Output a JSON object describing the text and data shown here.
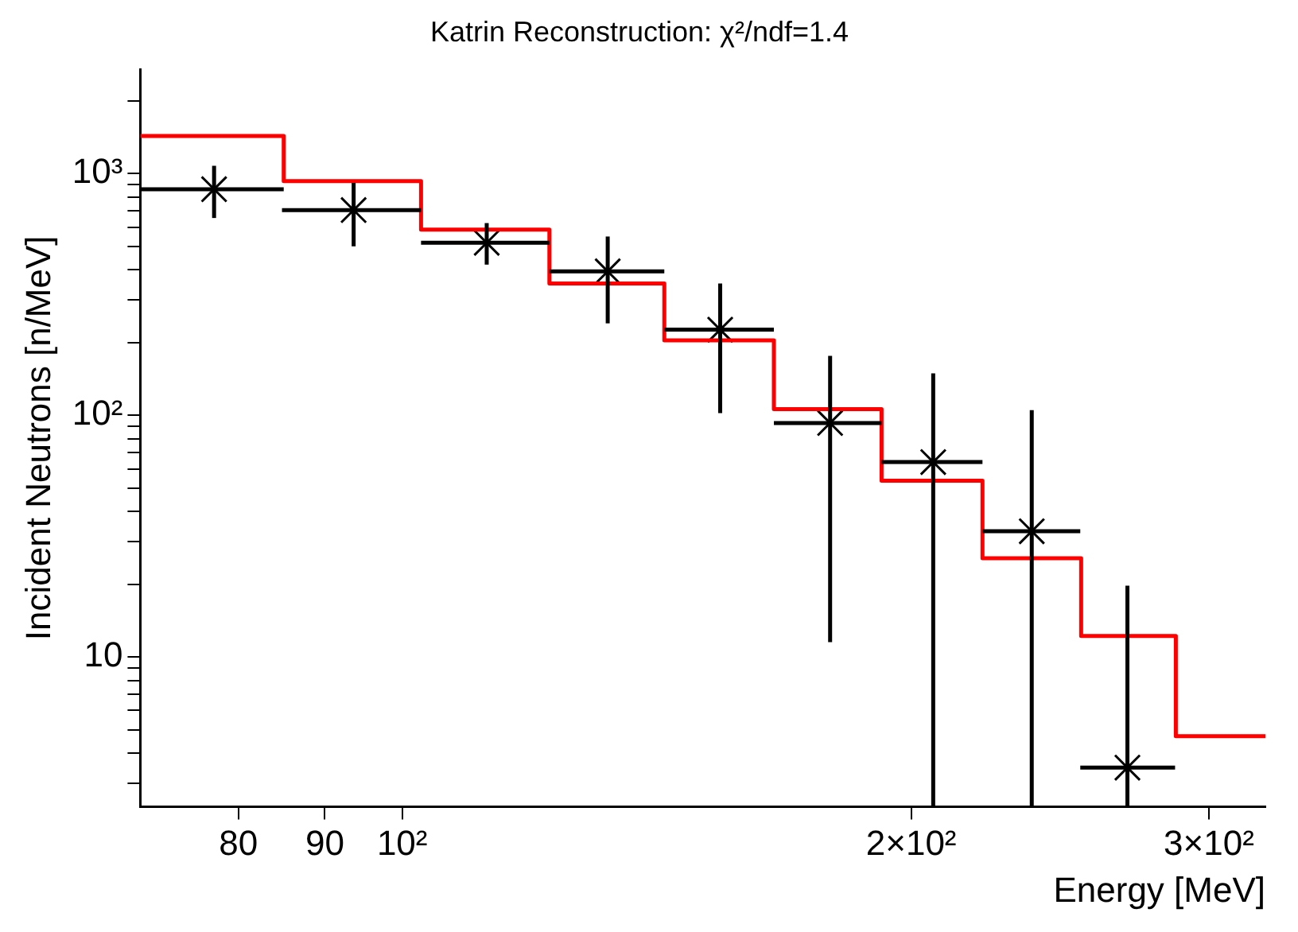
{
  "chart_data": {
    "type": "scatter",
    "title": "Katrin Reconstruction: χ²/ndf=1.4",
    "xlabel": "Energy [MeV]",
    "ylabel": "Incident Neutrons [n/MeV]",
    "log": "xy",
    "xlim": [
      70,
      324
    ],
    "ylim": [
      2.4,
      2700
    ],
    "xticks": [
      80,
      90,
      {
        "value": 100,
        "label": "10²"
      },
      {
        "value": 200,
        "label": "2×10²"
      },
      {
        "value": 300,
        "label": "3×10²"
      }
    ],
    "yticks": [
      {
        "value": 3,
        "label": null
      },
      {
        "value": 4,
        "label": null
      },
      {
        "value": 5,
        "label": null
      },
      {
        "value": 6,
        "label": null
      },
      {
        "value": 7,
        "label": null
      },
      {
        "value": 8,
        "label": null
      },
      {
        "value": 9,
        "label": null
      },
      10,
      {
        "value": 20,
        "label": null
      },
      {
        "value": 30,
        "label": null
      },
      {
        "value": 40,
        "label": null
      },
      {
        "value": 50,
        "label": null
      },
      {
        "value": 60,
        "label": null
      },
      {
        "value": 70,
        "label": null
      },
      {
        "value": 80,
        "label": null
      },
      {
        "value": 90,
        "label": null
      },
      {
        "value": 100,
        "label": "10²"
      },
      {
        "value": 200,
        "label": null
      },
      {
        "value": 300,
        "label": null
      },
      {
        "value": 400,
        "label": null
      },
      {
        "value": 500,
        "label": null
      },
      {
        "value": 600,
        "label": null
      },
      {
        "value": 700,
        "label": null
      },
      {
        "value": 800,
        "label": null
      },
      {
        "value": 900,
        "label": null
      },
      {
        "value": 1000,
        "label": "10³"
      },
      {
        "value": 2000,
        "label": null
      }
    ],
    "grid": false,
    "legend": false,
    "series": [
      {
        "type": "histogram",
        "color": "#ff0000",
        "bins": [
          70,
          85.1,
          102.6,
          122.2,
          142.9,
          165.9,
          192.1,
          220.4,
          252.1,
          286.8,
          324
        ],
        "values": [
          1430,
          930,
          586,
          351,
          204,
          106,
          53.6,
          25.6,
          12.2,
          4.7
        ]
      },
      {
        "type": "scatter",
        "color": "#000000",
        "marker": "cross",
        "x": [
          77.4,
          93.6,
          112.2,
          132.3,
          154.2,
          179.1,
          206.1,
          235.7,
          268.5
        ],
        "values": [
          862,
          706,
          517,
          394,
          226,
          92.9,
          64,
          33.1,
          3.48
        ],
        "errors": [
          [
            655,
            1077
          ],
          [
            500,
            915
          ],
          [
            420,
            624
          ],
          [
            240,
            549
          ],
          [
            102,
            351
          ],
          [
            11.5,
            176
          ],
          [
            2.4,
            149
          ],
          [
            2.4,
            105
          ],
          [
            2.4,
            19.7
          ]
        ],
        "xerrors": [
          [
            70.1,
            85.1
          ],
          [
            84.9,
            102.6
          ],
          [
            102.6,
            122.2
          ],
          [
            122.2,
            142.9
          ],
          [
            142.9,
            165.9
          ],
          [
            165.9,
            192.1
          ],
          [
            192.1,
            220.4
          ],
          [
            220.4,
            251.8
          ],
          [
            251.8,
            286.5
          ]
        ]
      }
    ]
  }
}
